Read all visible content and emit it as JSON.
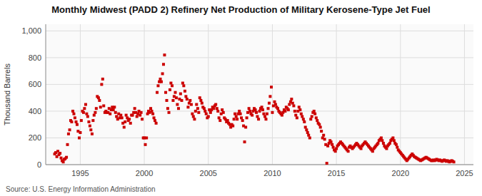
{
  "chart_data": {
    "type": "scatter",
    "title": "Monthly Midwest (PADD 2) Refinery Net Production of Military Kerosene-Type Jet Fuel",
    "ylabel": "Thousand Barrels",
    "annotations": [
      "Source: U.S. Energy Information Administration"
    ],
    "color": "#cc0000",
    "marker": "square",
    "grid": true,
    "xlim": [
      1992.3,
      2025.7
    ],
    "ylim": [
      0,
      1050
    ],
    "xticks": [
      1995,
      2000,
      2005,
      2010,
      2015,
      2020,
      2025
    ],
    "yticks": [
      0,
      200,
      400,
      600,
      800,
      {
        "value": 1000,
        "label": "1,000"
      }
    ],
    "x": [
      1993.0,
      1993.08,
      1993.17,
      1993.25,
      1993.33,
      1993.42,
      1993.5,
      1993.58,
      1993.67,
      1993.75,
      1993.83,
      1993.92,
      1994.0,
      1994.08,
      1994.17,
      1994.25,
      1994.33,
      1994.42,
      1994.5,
      1994.58,
      1994.67,
      1994.75,
      1994.83,
      1994.92,
      1995.0,
      1995.08,
      1995.17,
      1995.25,
      1995.33,
      1995.42,
      1995.5,
      1995.58,
      1995.67,
      1995.75,
      1995.83,
      1995.92,
      1996.0,
      1996.08,
      1996.17,
      1996.25,
      1996.33,
      1996.42,
      1996.5,
      1996.58,
      1996.67,
      1996.75,
      1996.83,
      1996.92,
      1997.0,
      1997.08,
      1997.17,
      1997.25,
      1997.33,
      1997.42,
      1997.5,
      1997.58,
      1997.67,
      1997.75,
      1997.83,
      1997.92,
      1998.0,
      1998.08,
      1998.17,
      1998.25,
      1998.33,
      1998.42,
      1998.5,
      1998.58,
      1998.67,
      1998.75,
      1998.83,
      1998.92,
      1999.0,
      1999.08,
      1999.17,
      1999.25,
      1999.33,
      1999.42,
      1999.5,
      1999.58,
      1999.67,
      1999.75,
      1999.83,
      1999.92,
      2000.0,
      2000.08,
      2000.17,
      2000.25,
      2000.33,
      2000.42,
      2000.5,
      2000.58,
      2000.67,
      2000.75,
      2000.83,
      2000.92,
      2001.0,
      2001.08,
      2001.17,
      2001.25,
      2001.33,
      2001.42,
      2001.5,
      2001.58,
      2001.67,
      2001.75,
      2001.83,
      2001.92,
      2002.0,
      2002.08,
      2002.17,
      2002.25,
      2002.33,
      2002.42,
      2002.5,
      2002.58,
      2002.67,
      2002.75,
      2002.83,
      2002.92,
      2003.0,
      2003.08,
      2003.17,
      2003.25,
      2003.33,
      2003.42,
      2003.5,
      2003.58,
      2003.67,
      2003.75,
      2003.83,
      2003.92,
      2004.0,
      2004.08,
      2004.17,
      2004.25,
      2004.33,
      2004.42,
      2004.5,
      2004.58,
      2004.67,
      2004.75,
      2004.83,
      2004.92,
      2005.0,
      2005.08,
      2005.17,
      2005.25,
      2005.33,
      2005.42,
      2005.5,
      2005.58,
      2005.67,
      2005.75,
      2005.83,
      2005.92,
      2006.0,
      2006.08,
      2006.17,
      2006.25,
      2006.33,
      2006.42,
      2006.5,
      2006.58,
      2006.67,
      2006.75,
      2006.83,
      2006.92,
      2007.0,
      2007.08,
      2007.17,
      2007.25,
      2007.33,
      2007.42,
      2007.5,
      2007.58,
      2007.67,
      2007.75,
      2007.83,
      2007.92,
      2008.0,
      2008.08,
      2008.17,
      2008.25,
      2008.33,
      2008.42,
      2008.5,
      2008.58,
      2008.67,
      2008.75,
      2008.83,
      2008.92,
      2009.0,
      2009.08,
      2009.17,
      2009.25,
      2009.33,
      2009.42,
      2009.5,
      2009.58,
      2009.67,
      2009.75,
      2009.83,
      2009.92,
      2010.0,
      2010.08,
      2010.17,
      2010.25,
      2010.33,
      2010.42,
      2010.5,
      2010.58,
      2010.67,
      2010.75,
      2010.83,
      2010.92,
      2011.0,
      2011.08,
      2011.17,
      2011.25,
      2011.33,
      2011.42,
      2011.5,
      2011.58,
      2011.67,
      2011.75,
      2011.83,
      2011.92,
      2012.0,
      2012.08,
      2012.17,
      2012.25,
      2012.33,
      2012.42,
      2012.5,
      2012.58,
      2012.67,
      2012.75,
      2012.83,
      2012.92,
      2013.0,
      2013.08,
      2013.17,
      2013.25,
      2013.33,
      2013.42,
      2013.5,
      2013.58,
      2013.67,
      2013.75,
      2013.83,
      2013.92,
      2014.0,
      2014.08,
      2014.17,
      2014.25,
      2014.33,
      2014.42,
      2014.5,
      2014.58,
      2014.67,
      2014.75,
      2014.83,
      2014.92,
      2015.0,
      2015.08,
      2015.17,
      2015.25,
      2015.33,
      2015.42,
      2015.5,
      2015.58,
      2015.67,
      2015.75,
      2015.83,
      2015.92,
      2016.0,
      2016.08,
      2016.17,
      2016.25,
      2016.33,
      2016.42,
      2016.5,
      2016.58,
      2016.67,
      2016.75,
      2016.83,
      2016.92,
      2017.0,
      2017.08,
      2017.17,
      2017.25,
      2017.33,
      2017.42,
      2017.5,
      2017.58,
      2017.67,
      2017.75,
      2017.83,
      2017.92,
      2018.0,
      2018.08,
      2018.17,
      2018.25,
      2018.33,
      2018.42,
      2018.5,
      2018.58,
      2018.67,
      2018.75,
      2018.83,
      2018.92,
      2019.0,
      2019.08,
      2019.17,
      2019.25,
      2019.33,
      2019.42,
      2019.5,
      2019.58,
      2019.67,
      2019.75,
      2019.83,
      2019.92,
      2020.0,
      2020.08,
      2020.17,
      2020.25,
      2020.33,
      2020.42,
      2020.5,
      2020.58,
      2020.67,
      2020.75,
      2020.83,
      2020.92,
      2021.0,
      2021.08,
      2021.17,
      2021.25,
      2021.33,
      2021.42,
      2021.5,
      2021.58,
      2021.67,
      2021.75,
      2021.83,
      2021.92,
      2022.0,
      2022.08,
      2022.17,
      2022.25,
      2022.33,
      2022.42,
      2022.5,
      2022.58,
      2022.67,
      2022.75,
      2022.83,
      2022.92,
      2023.0,
      2023.08,
      2023.17,
      2023.25,
      2023.33,
      2023.42,
      2023.5,
      2023.58,
      2023.67,
      2023.75,
      2023.83,
      2023.92,
      2024.0,
      2024.08,
      2024.17
    ],
    "values": [
      80,
      90,
      60,
      100,
      75,
      85,
      50,
      30,
      20,
      40,
      45,
      55,
      150,
      230,
      260,
      330,
      320,
      400,
      380,
      350,
      320,
      300,
      250,
      200,
      240,
      330,
      400,
      390,
      420,
      450,
      380,
      360,
      320,
      290,
      260,
      230,
      330,
      370,
      390,
      420,
      510,
      500,
      480,
      430,
      600,
      640,
      440,
      390,
      400,
      390,
      390,
      420,
      380,
      410,
      430,
      410,
      430,
      390,
      360,
      340,
      380,
      350,
      370,
      350,
      310,
      280,
      320,
      370,
      350,
      330,
      340,
      310,
      370,
      370,
      390,
      420,
      390,
      360,
      380,
      400,
      370,
      390,
      340,
      200,
      200,
      150,
      200,
      380,
      400,
      390,
      420,
      400,
      380,
      350,
      330,
      310,
      540,
      590,
      620,
      640,
      620,
      680,
      750,
      820,
      540,
      480,
      420,
      390,
      560,
      610,
      590,
      480,
      510,
      540,
      500,
      450,
      420,
      490,
      530,
      480,
      610,
      590,
      550,
      510,
      490,
      430,
      460,
      480,
      450,
      380,
      360,
      340,
      400,
      450,
      420,
      390,
      500,
      480,
      460,
      430,
      420,
      400,
      380,
      350,
      360,
      410,
      390,
      410,
      430,
      420,
      440,
      450,
      420,
      400,
      350,
      330,
      380,
      410,
      390,
      350,
      340,
      320,
      330,
      310,
      300,
      280,
      300,
      290,
      340,
      380,
      360,
      340,
      380,
      400,
      380,
      350,
      330,
      290,
      170,
      280,
      350,
      390,
      420,
      400,
      380,
      370,
      400,
      420,
      410,
      390,
      360,
      340,
      400,
      420,
      430,
      410,
      380,
      360,
      340,
      380,
      420,
      460,
      510,
      580,
      390,
      440,
      470,
      450,
      430,
      420,
      400,
      390,
      380,
      370,
      390,
      410,
      400,
      430,
      420,
      410,
      450,
      470,
      490,
      460,
      440,
      400,
      370,
      350,
      400,
      430,
      410,
      380,
      360,
      340,
      320,
      280,
      260,
      240,
      220,
      200,
      340,
      360,
      390,
      400,
      380,
      350,
      330,
      310,
      300,
      280,
      250,
      200,
      220,
      190,
      150,
      10,
      140,
      160,
      180,
      170,
      150,
      130,
      110,
      100,
      120,
      140,
      150,
      160,
      170,
      160,
      150,
      140,
      130,
      120,
      110,
      100,
      130,
      140,
      130,
      120,
      130,
      140,
      150,
      160,
      150,
      140,
      130,
      120,
      140,
      150,
      160,
      170,
      160,
      150,
      140,
      130,
      120,
      110,
      100,
      120,
      130,
      140,
      150,
      160,
      180,
      190,
      200,
      180,
      160,
      140,
      130,
      120,
      140,
      150,
      160,
      180,
      190,
      200,
      180,
      160,
      150,
      130,
      110,
      100,
      90,
      80,
      70,
      60,
      50,
      40,
      30,
      40,
      50,
      60,
      70,
      80,
      70,
      60,
      55,
      50,
      45,
      40,
      35,
      30,
      35,
      40,
      45,
      50,
      55,
      50,
      45,
      40,
      35,
      30,
      30,
      35,
      30,
      35,
      40,
      35,
      30,
      35,
      30,
      25,
      30,
      35,
      30,
      25,
      30,
      25,
      20,
      25,
      30,
      25,
      20
    ]
  }
}
